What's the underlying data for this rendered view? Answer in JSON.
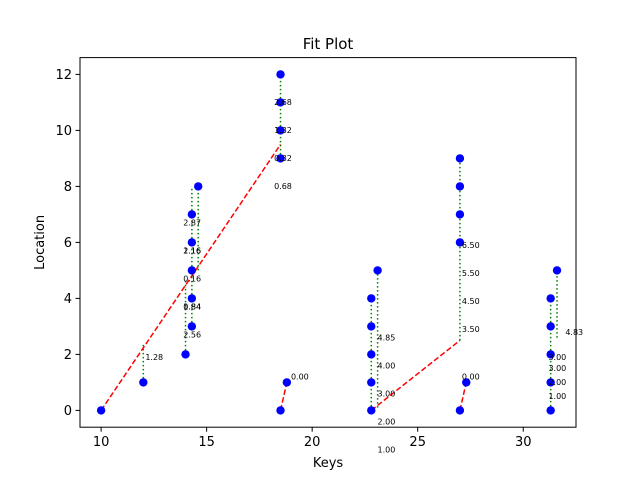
{
  "chart_data": {
    "type": "scatter",
    "title": "Fit Plot",
    "xlabel": "Keys",
    "ylabel": "Location",
    "xlim": [
      9.0,
      32.5
    ],
    "ylim": [
      -0.6,
      12.6
    ],
    "xticks": [
      10,
      15,
      20,
      25,
      30
    ],
    "yticks": [
      0,
      2,
      4,
      6,
      8,
      10,
      12
    ],
    "grid": false,
    "colors": {
      "points": "#0000ff",
      "fit_line": "#ff0000",
      "residual": "#008000"
    },
    "points": [
      {
        "x": 10.0,
        "y": 0
      },
      {
        "x": 12.0,
        "y": 1
      },
      {
        "x": 14.0,
        "y": 2
      },
      {
        "x": 14.3,
        "y": 3
      },
      {
        "x": 14.3,
        "y": 4
      },
      {
        "x": 14.3,
        "y": 5
      },
      {
        "x": 14.3,
        "y": 6
      },
      {
        "x": 14.3,
        "y": 7
      },
      {
        "x": 14.6,
        "y": 8
      },
      {
        "x": 18.5,
        "y": 0
      },
      {
        "x": 18.8,
        "y": 1
      },
      {
        "x": 18.5,
        "y": 9
      },
      {
        "x": 18.5,
        "y": 10
      },
      {
        "x": 18.5,
        "y": 11
      },
      {
        "x": 18.5,
        "y": 12
      },
      {
        "x": 22.8,
        "y": 0
      },
      {
        "x": 22.8,
        "y": 1
      },
      {
        "x": 22.8,
        "y": 2
      },
      {
        "x": 22.8,
        "y": 3
      },
      {
        "x": 22.8,
        "y": 4
      },
      {
        "x": 23.1,
        "y": 5
      },
      {
        "x": 27.0,
        "y": 0
      },
      {
        "x": 27.3,
        "y": 1
      },
      {
        "x": 27.0,
        "y": 6
      },
      {
        "x": 27.0,
        "y": 7
      },
      {
        "x": 27.0,
        "y": 8
      },
      {
        "x": 27.0,
        "y": 9
      },
      {
        "x": 31.3,
        "y": 0
      },
      {
        "x": 31.3,
        "y": 1
      },
      {
        "x": 31.3,
        "y": 2
      },
      {
        "x": 31.3,
        "y": 3
      },
      {
        "x": 31.3,
        "y": 4
      },
      {
        "x": 31.6,
        "y": 5
      }
    ],
    "fit_segments": [
      {
        "x": [
          10.0,
          18.5
        ],
        "y": [
          0,
          9.5
        ]
      },
      {
        "x": [
          18.5,
          18.8
        ],
        "y": [
          0,
          1
        ]
      },
      {
        "x": [
          22.8,
          27.0
        ],
        "y": [
          0,
          2.5
        ]
      },
      {
        "x": [
          27.0,
          27.3
        ],
        "y": [
          0,
          1
        ]
      }
    ],
    "residuals": [
      {
        "x": 12.0,
        "y1": 1,
        "y2": 2.4
      },
      {
        "x": 14.0,
        "y1": 2,
        "y2": 4.7
      },
      {
        "x": 14.3,
        "y1": 3,
        "y2": 8
      },
      {
        "x": 14.6,
        "y1": 5,
        "y2": 8
      },
      {
        "x": 18.5,
        "y1": 9,
        "y2": 12
      },
      {
        "x": 18.5,
        "y1": 9.5,
        "y2": 9.5
      },
      {
        "x": 22.8,
        "y1": 0,
        "y2": 4
      },
      {
        "x": 23.1,
        "y1": 0.1,
        "y2": 5
      },
      {
        "x": 27.0,
        "y1": 2.5,
        "y2": 9
      },
      {
        "x": 27.3,
        "y1": 1,
        "y2": 1
      },
      {
        "x": 31.3,
        "y1": 0,
        "y2": 4
      },
      {
        "x": 31.6,
        "y1": 2.6,
        "y2": 5
      }
    ],
    "annotations": [
      {
        "text": "1.28",
        "x": 12.0,
        "y": 1.8
      },
      {
        "text": "2.87",
        "x": 13.8,
        "y": 6.6
      },
      {
        "text": "2.16",
        "x": 13.8,
        "y": 5.6
      },
      {
        "text": "1.16",
        "x": 13.8,
        "y": 5.6
      },
      {
        "text": "0.16",
        "x": 13.8,
        "y": 4.6
      },
      {
        "text": "0.84",
        "x": 13.8,
        "y": 3.6
      },
      {
        "text": "1.84",
        "x": 13.8,
        "y": 3.6
      },
      {
        "text": "2.56",
        "x": 13.8,
        "y": 2.6
      },
      {
        "text": "2.68",
        "x": 18.1,
        "y": 10.9
      },
      {
        "text": "1.32",
        "x": 18.1,
        "y": 9.9
      },
      {
        "text": "0.32",
        "x": 18.1,
        "y": 8.9
      },
      {
        "text": "0.68",
        "x": 18.1,
        "y": 7.9
      },
      {
        "text": "0.00",
        "x": 18.9,
        "y": 1.1
      },
      {
        "text": "4.85",
        "x": 23.0,
        "y": 2.5
      },
      {
        "text": "4.00",
        "x": 23.0,
        "y": 1.5
      },
      {
        "text": "3.00",
        "x": 23.0,
        "y": 0.5
      },
      {
        "text": "2.00",
        "x": 23.0,
        "y": -0.5
      },
      {
        "text": "1.00",
        "x": 23.0,
        "y": -1.5
      },
      {
        "text": "6.50",
        "x": 27.0,
        "y": 5.8
      },
      {
        "text": "5.50",
        "x": 27.0,
        "y": 4.8
      },
      {
        "text": "4.50",
        "x": 27.0,
        "y": 3.8
      },
      {
        "text": "3.50",
        "x": 27.0,
        "y": 2.8
      },
      {
        "text": "0.00",
        "x": 27.0,
        "y": 1.1
      },
      {
        "text": "4.83",
        "x": 31.9,
        "y": 2.7
      },
      {
        "text": "3.00",
        "x": 31.1,
        "y": 1.8
      },
      {
        "text": "3.00",
        "x": 31.1,
        "y": 1.4
      },
      {
        "text": "2.00",
        "x": 31.1,
        "y": 0.9
      },
      {
        "text": "1.00",
        "x": 31.1,
        "y": 0.4
      }
    ]
  }
}
